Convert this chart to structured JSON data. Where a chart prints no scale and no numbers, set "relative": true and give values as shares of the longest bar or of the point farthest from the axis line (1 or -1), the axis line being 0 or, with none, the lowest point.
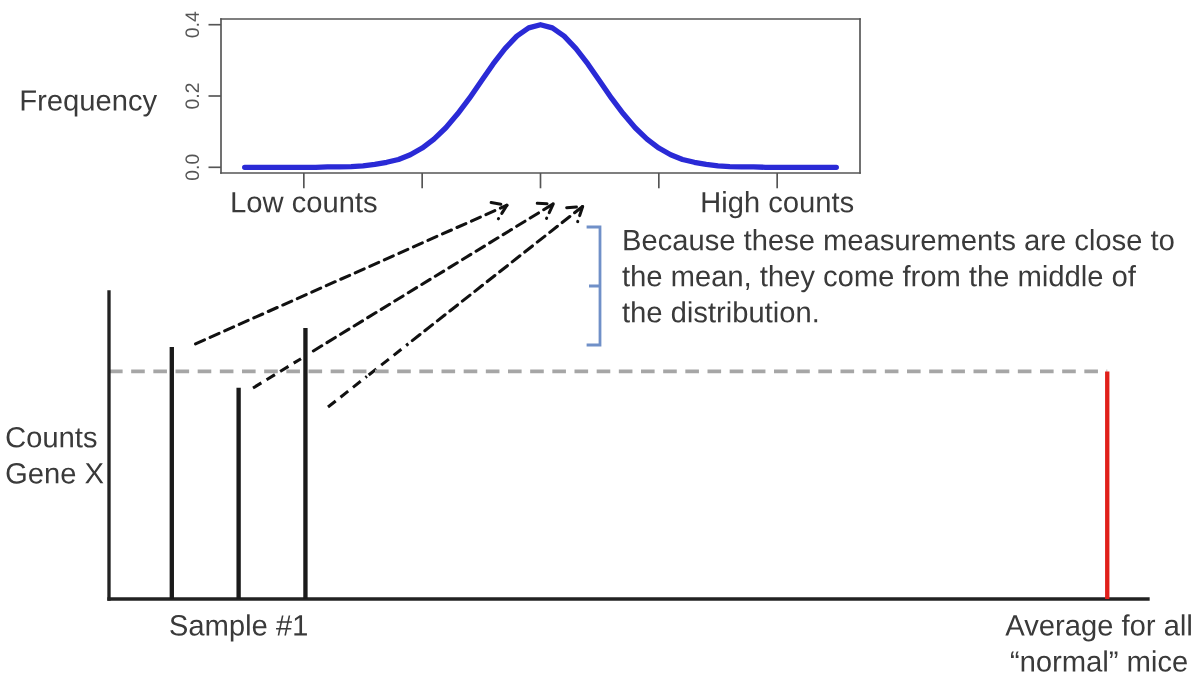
{
  "chart_data": [
    {
      "type": "line",
      "ylabel": "Frequency",
      "categories": [
        null,
        null,
        null,
        null,
        null,
        "Low counts",
        null,
        null,
        null,
        null,
        null,
        null,
        null,
        null,
        null,
        null,
        null,
        null,
        null,
        null,
        null,
        null,
        null,
        null,
        null,
        null,
        null,
        null,
        null,
        null,
        null,
        null,
        null,
        null,
        null,
        null,
        null,
        null,
        null,
        null,
        null,
        null,
        null,
        null,
        null,
        "High counts",
        null,
        null,
        null,
        null,
        null
      ],
      "series": [
        {
          "color": "#2a2ad6",
          "values": [
            0,
            0,
            0,
            0,
            0,
            0,
            0,
            0.001,
            0.001,
            0.002,
            0.004,
            0.008,
            0.014,
            0.022,
            0.035,
            0.054,
            0.079,
            0.111,
            0.15,
            0.194,
            0.242,
            0.29,
            0.333,
            0.368,
            0.391,
            0.4,
            0.391,
            0.368,
            0.333,
            0.29,
            0.242,
            0.194,
            0.15,
            0.111,
            0.079,
            0.054,
            0.035,
            0.022,
            0.014,
            0.008,
            0.004,
            0.002,
            0.001,
            0.001,
            0,
            0,
            0,
            0,
            0,
            0,
            0
          ]
        }
      ],
      "ylim": [
        -0.016,
        0.416
      ],
      "yticks": [
        {
          "value": 0,
          "label": "0.0"
        },
        0.2,
        0.4
      ]
    },
    {
      "type": "bar",
      "relative": true,
      "ylabel": "Counts\nGene X",
      "tick_labels": "x",
      "categories": [
        null,
        "Sample #1",
        null,
        null,
        null,
        null,
        null,
        null,
        null,
        null,
        null,
        null,
        null,
        null,
        "Average for all\n“normal” mice"
      ],
      "series": [
        {
          "color": "#1a1a1a",
          "values": [
            0.93,
            0.78,
            1,
            null,
            null,
            null,
            null,
            null,
            null,
            null,
            null,
            null,
            null,
            null,
            null
          ]
        },
        {
          "color": "#e0201a",
          "values": [
            null,
            null,
            null,
            null,
            null,
            null,
            null,
            null,
            null,
            null,
            null,
            null,
            null,
            null,
            0.84
          ]
        }
      ],
      "ref_lines": [
        {
          "axis": "y",
          "value": 0.84,
          "color": "#a6a6a6",
          "line_style": "dashed"
        }
      ],
      "annotations": [
        "Because these measurements are close to\nthe mean, they come from the middle of\nthe distribution."
      ]
    }
  ]
}
